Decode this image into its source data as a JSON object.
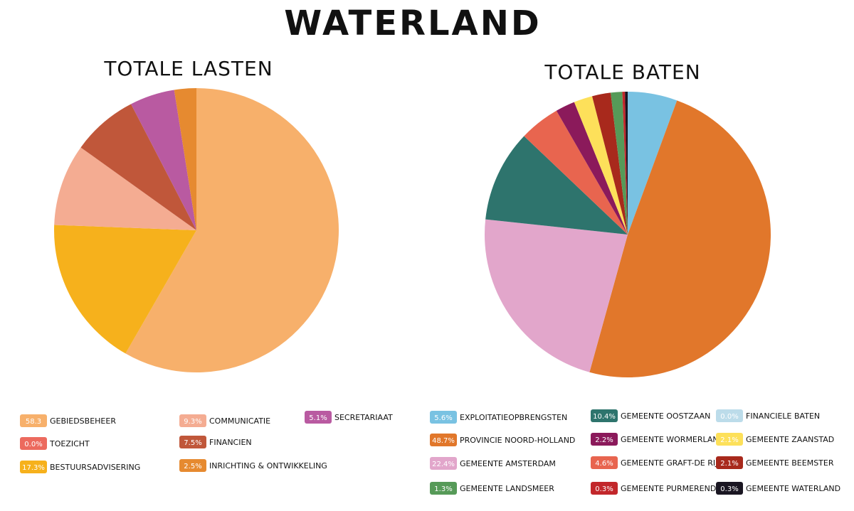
{
  "title": "WATERLAND",
  "chart_data": [
    {
      "type": "pie",
      "title": "TOTALE LASTEN",
      "categories": [
        "GEBIEDSBEHEER",
        "TOEZICHT",
        "BESTUURSADVISERING",
        "COMMUNICATIE",
        "FINANCIEN",
        "SECRETARIAAT",
        "INRICHTING & ONTWIKKELING"
      ],
      "values": [
        58.3,
        0.0,
        17.3,
        9.3,
        7.5,
        5.1,
        2.5
      ],
      "value_labels": [
        "58.3",
        "0.0%",
        "17.3%",
        "9.3%",
        "7.5%",
        "5.1%",
        "2.5%"
      ],
      "colors": [
        "#f7b06b",
        "#ec6a5e",
        "#f6b11c",
        "#f4ac92",
        "#c0573a",
        "#b95aa1",
        "#e68a30"
      ]
    },
    {
      "type": "pie",
      "title": "TOTALE BATEN",
      "categories": [
        "EXPLOITATIEOPBRENGSTEN",
        "PROVINCIE NOORD-HOLLAND",
        "GEMEENTE AMSTERDAM",
        "GEMEENTE OOSTZAAN",
        "GEMEENTE GRAFT-DE RIJP",
        "GEMEENTE WORMERLAND",
        "GEMEENTE ZAANSTAD",
        "GEMEENTE BEEMSTER",
        "GEMEENTE LANDSMEER",
        "GEMEENTE PURMEREND",
        "GEMEENTE WATERLAND",
        "FINANCIELE BATEN"
      ],
      "values": [
        5.6,
        48.7,
        22.4,
        10.4,
        4.6,
        2.2,
        2.1,
        2.1,
        1.3,
        0.3,
        0.3,
        0.0
      ],
      "value_labels": [
        "5.6%",
        "48.7%",
        "22.4%",
        "10.4%",
        "4.6%",
        "2.2%",
        "2.1%",
        "2.1%",
        "1.3%",
        "0.3%",
        "0.3%",
        "0.0%"
      ],
      "colors": [
        "#79c2e2",
        "#e1772b",
        "#e2a6cb",
        "#2e746d",
        "#e8654f",
        "#8b1a5b",
        "#fde05a",
        "#a8291c",
        "#569a58",
        "#c2272b",
        "#1a1622",
        "#bcdcea"
      ]
    }
  ]
}
